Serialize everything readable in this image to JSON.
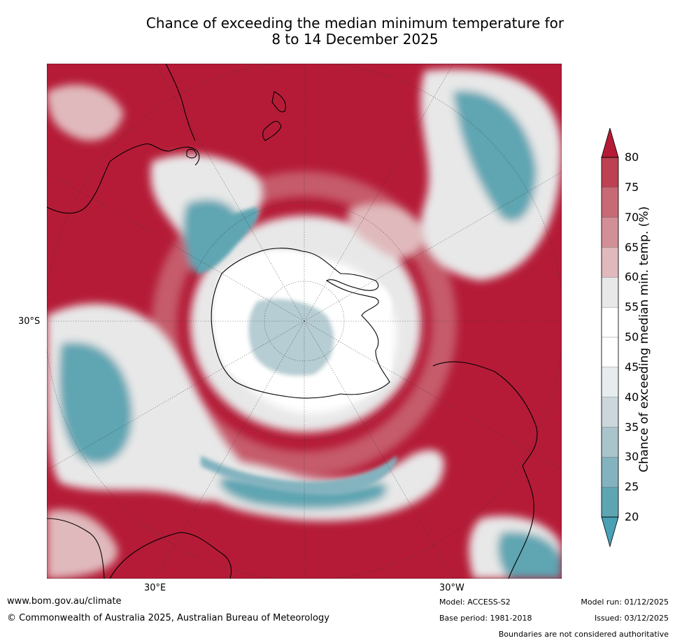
{
  "title": {
    "line1": "Chance of exceeding the median minimum temperature for",
    "line2": "8 to 14 December 2025"
  },
  "map": {
    "projection": "polar stereographic (south pole centred)",
    "lat_label": "30°S",
    "lon_labels": [
      "30°E",
      "30°W"
    ]
  },
  "colorbar": {
    "title": "Chance of exceeding median min. temp. (%)",
    "ticks": [
      "80",
      "75",
      "70",
      "65",
      "60",
      "55",
      "50",
      "45",
      "40",
      "35",
      "30",
      "25",
      "20"
    ],
    "colors": [
      "#b51b37",
      "#bc4151",
      "#c76a75",
      "#d38f96",
      "#e0b9bc",
      "#e8e8e8",
      "#ffffff",
      "#ffffff",
      "#e7ecef",
      "#ccd7dc",
      "#a9c4cb",
      "#82b3bf",
      "#5ea5b2",
      "#4aa0b5"
    ],
    "extend_top_color": "#b51b37",
    "extend_bottom_color": "#4aa0b5"
  },
  "footer": {
    "url": "www.bom.gov.au/climate",
    "copyright": "© Commonwealth of Australia 2025, Australian Bureau of Meteorology",
    "model": "Model: ACCESS-S2",
    "base_period": "Base period: 1981-2018",
    "model_run": "Model run: 01/12/2025",
    "issued": "Issued: 03/12/2025",
    "disclaimer": "Boundaries are not considered authoritative"
  }
}
